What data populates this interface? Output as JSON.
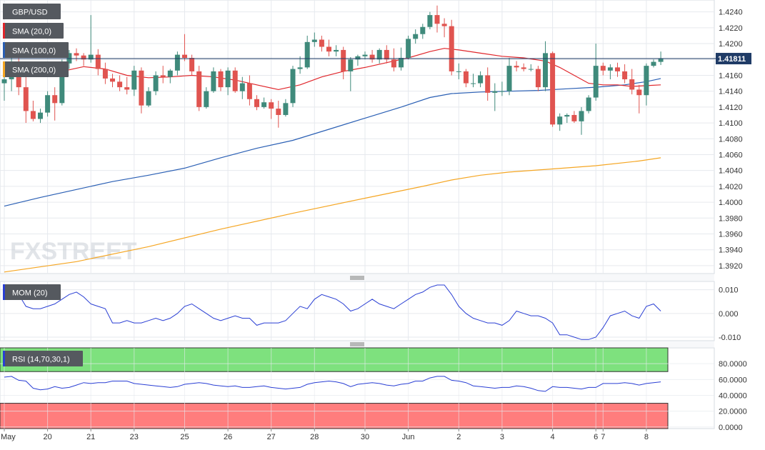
{
  "chart_data": [
    {
      "type": "candlestick",
      "title": "GBP/USD",
      "last_price_label": "1.41811",
      "ylim": [
        1.391,
        1.4255
      ],
      "y_ticks": [
        "1.4240",
        "1.4220",
        "1.4200",
        "1.4180",
        "1.4160",
        "1.4140",
        "1.4120",
        "1.4100",
        "1.4080",
        "1.4060",
        "1.4040",
        "1.4020",
        "1.4000",
        "1.3980",
        "1.3960",
        "1.3940",
        "1.3920"
      ],
      "indicators": [
        {
          "name": "SMA (20,0)",
          "color": "#e0262b"
        },
        {
          "name": "SMA (100,0)",
          "color": "#2a5fb4"
        },
        {
          "name": "SMA (200,0)",
          "color": "#f5a623"
        }
      ],
      "candles": [
        {
          "o": 1.415,
          "h": 1.4162,
          "l": 1.4128,
          "c": 1.4155
        },
        {
          "o": 1.4155,
          "h": 1.4195,
          "l": 1.414,
          "c": 1.4176
        },
        {
          "o": 1.4176,
          "h": 1.4182,
          "l": 1.4135,
          "c": 1.4145
        },
        {
          "o": 1.4145,
          "h": 1.416,
          "l": 1.41,
          "c": 1.4115
        },
        {
          "o": 1.4115,
          "h": 1.4128,
          "l": 1.4102,
          "c": 1.4105
        },
        {
          "o": 1.4105,
          "h": 1.4118,
          "l": 1.41,
          "c": 1.4113
        },
        {
          "o": 1.4113,
          "h": 1.414,
          "l": 1.4108,
          "c": 1.4135
        },
        {
          "o": 1.4135,
          "h": 1.4145,
          "l": 1.4103,
          "c": 1.4125
        },
        {
          "o": 1.4125,
          "h": 1.418,
          "l": 1.4122,
          "c": 1.4175
        },
        {
          "o": 1.4175,
          "h": 1.4192,
          "l": 1.4168,
          "c": 1.4188
        },
        {
          "o": 1.4188,
          "h": 1.4194,
          "l": 1.4178,
          "c": 1.4185
        },
        {
          "o": 1.4185,
          "h": 1.4188,
          "l": 1.4172,
          "c": 1.418
        },
        {
          "o": 1.418,
          "h": 1.4236,
          "l": 1.4176,
          "c": 1.4186
        },
        {
          "o": 1.4186,
          "h": 1.4193,
          "l": 1.416,
          "c": 1.4168
        },
        {
          "o": 1.4168,
          "h": 1.4176,
          "l": 1.4149,
          "c": 1.4156
        },
        {
          "o": 1.4156,
          "h": 1.4162,
          "l": 1.4145,
          "c": 1.4152
        },
        {
          "o": 1.4152,
          "h": 1.416,
          "l": 1.414,
          "c": 1.4145
        },
        {
          "o": 1.4145,
          "h": 1.4158,
          "l": 1.4136,
          "c": 1.4142
        },
        {
          "o": 1.4142,
          "h": 1.4172,
          "l": 1.4134,
          "c": 1.4166
        },
        {
          "o": 1.4166,
          "h": 1.417,
          "l": 1.4112,
          "c": 1.4122
        },
        {
          "o": 1.4122,
          "h": 1.4145,
          "l": 1.412,
          "c": 1.414
        },
        {
          "o": 1.414,
          "h": 1.4165,
          "l": 1.4135,
          "c": 1.416
        },
        {
          "o": 1.416,
          "h": 1.4172,
          "l": 1.415,
          "c": 1.4158
        },
        {
          "o": 1.4158,
          "h": 1.4168,
          "l": 1.415,
          "c": 1.4166
        },
        {
          "o": 1.4166,
          "h": 1.419,
          "l": 1.416,
          "c": 1.4186
        },
        {
          "o": 1.4186,
          "h": 1.4212,
          "l": 1.4178,
          "c": 1.4182
        },
        {
          "o": 1.4182,
          "h": 1.4186,
          "l": 1.416,
          "c": 1.4165
        },
        {
          "o": 1.4165,
          "h": 1.4172,
          "l": 1.4115,
          "c": 1.412
        },
        {
          "o": 1.412,
          "h": 1.4145,
          "l": 1.4118,
          "c": 1.414
        },
        {
          "o": 1.414,
          "h": 1.417,
          "l": 1.4138,
          "c": 1.4165
        },
        {
          "o": 1.4165,
          "h": 1.4168,
          "l": 1.414,
          "c": 1.4145
        },
        {
          "o": 1.4145,
          "h": 1.417,
          "l": 1.4135,
          "c": 1.4166
        },
        {
          "o": 1.4166,
          "h": 1.417,
          "l": 1.4138,
          "c": 1.414
        },
        {
          "o": 1.414,
          "h": 1.4158,
          "l": 1.413,
          "c": 1.415
        },
        {
          "o": 1.415,
          "h": 1.416,
          "l": 1.4122,
          "c": 1.413
        },
        {
          "o": 1.413,
          "h": 1.4135,
          "l": 1.4116,
          "c": 1.412
        },
        {
          "o": 1.412,
          "h": 1.4132,
          "l": 1.4118,
          "c": 1.4126
        },
        {
          "o": 1.4126,
          "h": 1.413,
          "l": 1.4105,
          "c": 1.4118
        },
        {
          "o": 1.4118,
          "h": 1.4128,
          "l": 1.4094,
          "c": 1.411
        },
        {
          "o": 1.411,
          "h": 1.413,
          "l": 1.4108,
          "c": 1.4125
        },
        {
          "o": 1.4125,
          "h": 1.4172,
          "l": 1.412,
          "c": 1.4168
        },
        {
          "o": 1.4168,
          "h": 1.4184,
          "l": 1.4162,
          "c": 1.417
        },
        {
          "o": 1.417,
          "h": 1.421,
          "l": 1.4168,
          "c": 1.4202
        },
        {
          "o": 1.4202,
          "h": 1.4214,
          "l": 1.4196,
          "c": 1.4205
        },
        {
          "o": 1.4205,
          "h": 1.421,
          "l": 1.419,
          "c": 1.4196
        },
        {
          "o": 1.4196,
          "h": 1.4205,
          "l": 1.4184,
          "c": 1.419
        },
        {
          "o": 1.419,
          "h": 1.4198,
          "l": 1.4184,
          "c": 1.4192
        },
        {
          "o": 1.4192,
          "h": 1.4196,
          "l": 1.4155,
          "c": 1.4165
        },
        {
          "o": 1.4165,
          "h": 1.4183,
          "l": 1.414,
          "c": 1.418
        },
        {
          "o": 1.418,
          "h": 1.4186,
          "l": 1.4172,
          "c": 1.4184
        },
        {
          "o": 1.4184,
          "h": 1.419,
          "l": 1.418,
          "c": 1.4186
        },
        {
          "o": 1.4186,
          "h": 1.4192,
          "l": 1.4176,
          "c": 1.418
        },
        {
          "o": 1.418,
          "h": 1.4194,
          "l": 1.4175,
          "c": 1.4192
        },
        {
          "o": 1.4192,
          "h": 1.4198,
          "l": 1.4175,
          "c": 1.418
        },
        {
          "o": 1.418,
          "h": 1.4194,
          "l": 1.4165,
          "c": 1.417
        },
        {
          "o": 1.417,
          "h": 1.4195,
          "l": 1.4166,
          "c": 1.4182
        },
        {
          "o": 1.4182,
          "h": 1.421,
          "l": 1.418,
          "c": 1.4206
        },
        {
          "o": 1.4206,
          "h": 1.4218,
          "l": 1.42,
          "c": 1.4212
        },
        {
          "o": 1.4212,
          "h": 1.4225,
          "l": 1.4206,
          "c": 1.4221
        },
        {
          "o": 1.4221,
          "h": 1.424,
          "l": 1.4218,
          "c": 1.4236
        },
        {
          "o": 1.4236,
          "h": 1.4248,
          "l": 1.4214,
          "c": 1.4225
        },
        {
          "o": 1.4225,
          "h": 1.4232,
          "l": 1.4208,
          "c": 1.4222
        },
        {
          "o": 1.4222,
          "h": 1.423,
          "l": 1.416,
          "c": 1.4165
        },
        {
          "o": 1.4165,
          "h": 1.4175,
          "l": 1.4155,
          "c": 1.4165
        },
        {
          "o": 1.4165,
          "h": 1.4168,
          "l": 1.4145,
          "c": 1.415
        },
        {
          "o": 1.415,
          "h": 1.4162,
          "l": 1.4145,
          "c": 1.415
        },
        {
          "o": 1.415,
          "h": 1.4165,
          "l": 1.4145,
          "c": 1.416
        },
        {
          "o": 1.416,
          "h": 1.417,
          "l": 1.4128,
          "c": 1.4138
        },
        {
          "o": 1.4138,
          "h": 1.415,
          "l": 1.4115,
          "c": 1.414
        },
        {
          "o": 1.414,
          "h": 1.4152,
          "l": 1.4134,
          "c": 1.414
        },
        {
          "o": 1.414,
          "h": 1.4182,
          "l": 1.4135,
          "c": 1.4172
        },
        {
          "o": 1.4172,
          "h": 1.4178,
          "l": 1.4165,
          "c": 1.417
        },
        {
          "o": 1.417,
          "h": 1.4175,
          "l": 1.4165,
          "c": 1.4168
        },
        {
          "o": 1.4168,
          "h": 1.4174,
          "l": 1.4165,
          "c": 1.4168
        },
        {
          "o": 1.4168,
          "h": 1.4172,
          "l": 1.414,
          "c": 1.4145
        },
        {
          "o": 1.4145,
          "h": 1.4203,
          "l": 1.414,
          "c": 1.4188
        },
        {
          "o": 1.4188,
          "h": 1.419,
          "l": 1.4095,
          "c": 1.4098
        },
        {
          "o": 1.4098,
          "h": 1.4112,
          "l": 1.409,
          "c": 1.4108
        },
        {
          "o": 1.4108,
          "h": 1.4112,
          "l": 1.41,
          "c": 1.411
        },
        {
          "o": 1.411,
          "h": 1.4115,
          "l": 1.41,
          "c": 1.4102
        },
        {
          "o": 1.4102,
          "h": 1.412,
          "l": 1.4085,
          "c": 1.4115
        },
        {
          "o": 1.4115,
          "h": 1.4135,
          "l": 1.4112,
          "c": 1.4132
        },
        {
          "o": 1.4132,
          "h": 1.42,
          "l": 1.4128,
          "c": 1.4172
        },
        {
          "o": 1.4172,
          "h": 1.4176,
          "l": 1.416,
          "c": 1.4166
        },
        {
          "o": 1.4166,
          "h": 1.4174,
          "l": 1.4155,
          "c": 1.417
        },
        {
          "o": 1.417,
          "h": 1.4176,
          "l": 1.4158,
          "c": 1.4165
        },
        {
          "o": 1.4165,
          "h": 1.4174,
          "l": 1.415,
          "c": 1.4155
        },
        {
          "o": 1.4155,
          "h": 1.4168,
          "l": 1.4136,
          "c": 1.4142
        },
        {
          "o": 1.4142,
          "h": 1.4148,
          "l": 1.4112,
          "c": 1.4135
        },
        {
          "o": 1.4135,
          "h": 1.4175,
          "l": 1.4122,
          "c": 1.4172
        },
        {
          "o": 1.4172,
          "h": 1.418,
          "l": 1.417,
          "c": 1.4177
        },
        {
          "o": 1.4177,
          "h": 1.419,
          "l": 1.4173,
          "c": 1.4181
        }
      ],
      "sma20": [
        [
          0,
          1.4165
        ],
        [
          2,
          1.4158
        ],
        [
          5,
          1.416
        ],
        [
          8,
          1.4165
        ],
        [
          11,
          1.4171
        ],
        [
          14,
          1.4168
        ],
        [
          17,
          1.416
        ],
        [
          20,
          1.4157
        ],
        [
          23,
          1.4158
        ],
        [
          26,
          1.416
        ],
        [
          29,
          1.4158
        ],
        [
          32,
          1.4154
        ],
        [
          35,
          1.4148
        ],
        [
          38,
          1.4142
        ],
        [
          41,
          1.4148
        ],
        [
          44,
          1.4158
        ],
        [
          47,
          1.4165
        ],
        [
          50,
          1.417
        ],
        [
          53,
          1.4176
        ],
        [
          56,
          1.4182
        ],
        [
          59,
          1.419
        ],
        [
          61,
          1.4194
        ],
        [
          63,
          1.4192
        ],
        [
          66,
          1.4188
        ],
        [
          69,
          1.4184
        ],
        [
          72,
          1.4182
        ],
        [
          75,
          1.4178
        ],
        [
          77,
          1.417
        ],
        [
          79,
          1.416
        ],
        [
          81,
          1.415
        ],
        [
          83,
          1.4148
        ],
        [
          85,
          1.4148
        ],
        [
          87,
          1.4146
        ],
        [
          89,
          1.4147
        ],
        [
          91,
          1.4148
        ]
      ],
      "sma100": [
        [
          0,
          1.3995
        ],
        [
          5,
          1.4006
        ],
        [
          10,
          1.4016
        ],
        [
          15,
          1.4026
        ],
        [
          20,
          1.4034
        ],
        [
          25,
          1.4043
        ],
        [
          30,
          1.4056
        ],
        [
          35,
          1.4068
        ],
        [
          40,
          1.4078
        ],
        [
          45,
          1.4092
        ],
        [
          50,
          1.4106
        ],
        [
          55,
          1.412
        ],
        [
          59,
          1.4132
        ],
        [
          62,
          1.4137
        ],
        [
          66,
          1.4139
        ],
        [
          70,
          1.414
        ],
        [
          74,
          1.4141
        ],
        [
          78,
          1.4143
        ],
        [
          82,
          1.4145
        ],
        [
          86,
          1.4148
        ],
        [
          89,
          1.4152
        ],
        [
          91,
          1.4156
        ]
      ],
      "sma200": [
        [
          0,
          1.3912
        ],
        [
          10,
          1.3925
        ],
        [
          20,
          1.3944
        ],
        [
          30,
          1.3966
        ],
        [
          40,
          1.3986
        ],
        [
          50,
          1.4005
        ],
        [
          58,
          1.402
        ],
        [
          62,
          1.4028
        ],
        [
          66,
          1.4034
        ],
        [
          70,
          1.4038
        ],
        [
          76,
          1.4042
        ],
        [
          82,
          1.4046
        ],
        [
          88,
          1.4052
        ],
        [
          91,
          1.4056
        ]
      ],
      "x_labels": [
        {
          "i": 0,
          "label": "May"
        },
        {
          "i": 6,
          "label": "20"
        },
        {
          "i": 12,
          "label": "21"
        },
        {
          "i": 18,
          "label": "23"
        },
        {
          "i": 25,
          "label": "25"
        },
        {
          "i": 31,
          "label": "26"
        },
        {
          "i": 37,
          "label": "27"
        },
        {
          "i": 43,
          "label": "28"
        },
        {
          "i": 50,
          "label": "30"
        },
        {
          "i": 56,
          "label": "Jun"
        },
        {
          "i": 63,
          "label": "2"
        },
        {
          "i": 69,
          "label": "3"
        },
        {
          "i": 76,
          "label": "4"
        },
        {
          "i": 82,
          "label": "6"
        },
        {
          "i": 83,
          "label": "7"
        },
        {
          "i": 89,
          "label": "8"
        }
      ],
      "watermark": "FXSTREET"
    },
    {
      "type": "line",
      "title": "MOM (20)",
      "ylim": [
        -0.0115,
        0.0135
      ],
      "y_ticks": [
        "0.010",
        "0.000",
        "-0.010"
      ],
      "values": [
        0.011,
        0.011,
        0.008,
        0.003,
        0.002,
        0.002,
        0.003,
        0.004,
        0.006,
        0.008,
        0.009,
        0.007,
        0.004,
        0.003,
        0.002,
        -0.004,
        -0.004,
        -0.003,
        -0.004,
        -0.004,
        -0.003,
        -0.002,
        -0.003,
        -0.002,
        0.0,
        0.003,
        0.004,
        0.002,
        0.0,
        -0.002,
        -0.003,
        -0.002,
        -0.001,
        -0.002,
        -0.002,
        -0.005,
        -0.004,
        -0.004,
        -0.004,
        -0.003,
        0.0,
        0.003,
        0.002,
        0.006,
        0.008,
        0.007,
        0.006,
        0.004,
        0.001,
        0.002,
        0.004,
        0.006,
        0.004,
        0.003,
        0.002,
        0.004,
        0.006,
        0.008,
        0.009,
        0.011,
        0.012,
        0.012,
        0.008,
        0.003,
        0.0,
        -0.002,
        -0.003,
        -0.004,
        -0.004,
        -0.005,
        -0.003,
        0.001,
        0.0,
        -0.001,
        -0.001,
        -0.002,
        -0.004,
        -0.009,
        -0.009,
        -0.01,
        -0.011,
        -0.011,
        -0.01,
        -0.006,
        -0.001,
        0.0,
        0.001,
        -0.001,
        -0.002,
        0.003,
        0.004,
        0.001
      ]
    },
    {
      "type": "line",
      "title": "RSI (14,70,30,1)",
      "ylim": [
        0,
        100
      ],
      "y_ticks": [
        "80.0000",
        "60.0000",
        "40.0000",
        "20.0000",
        "0.0000"
      ],
      "overbought": 70,
      "oversold": 30,
      "values": [
        63,
        64,
        59,
        58,
        49,
        47,
        48,
        51,
        49,
        50,
        53,
        56,
        55,
        56,
        56,
        58,
        58,
        58,
        55,
        54,
        53,
        52,
        51,
        50,
        51,
        54,
        55,
        56,
        55,
        53,
        52,
        51,
        52,
        50,
        50,
        51,
        52,
        50,
        49,
        48,
        49,
        50,
        54,
        56,
        57,
        58,
        57,
        55,
        51,
        54,
        55,
        56,
        55,
        53,
        52,
        54,
        55,
        58,
        58,
        62,
        64,
        64,
        59,
        58,
        56,
        52,
        51,
        50,
        49,
        50,
        50,
        52,
        51,
        49,
        46,
        45,
        51,
        50,
        50,
        49,
        48,
        50,
        50,
        55,
        55,
        55,
        56,
        55,
        53,
        55,
        56,
        57
      ]
    }
  ],
  "colors": {
    "bull": "#3f8a7b",
    "bear": "#e05450",
    "price_line": "#1f3b66",
    "rsi_overbought_fill": "#7ee17e",
    "rsi_oversold_fill": "#ff7d7d",
    "grid": "#e6e9ee",
    "axis_text": "#333333"
  }
}
